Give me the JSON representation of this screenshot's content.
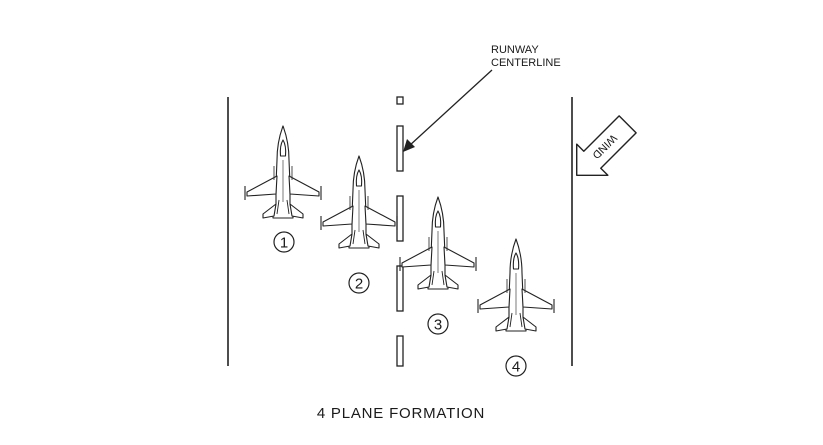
{
  "labels": {
    "centerline_line1": "RUNWAY",
    "centerline_line2": "CENTERLINE",
    "wind": "WIND",
    "title": "4 PLANE FORMATION"
  },
  "aircraft": [
    {
      "position": "1"
    },
    {
      "position": "2"
    },
    {
      "position": "3"
    },
    {
      "position": "4"
    }
  ]
}
